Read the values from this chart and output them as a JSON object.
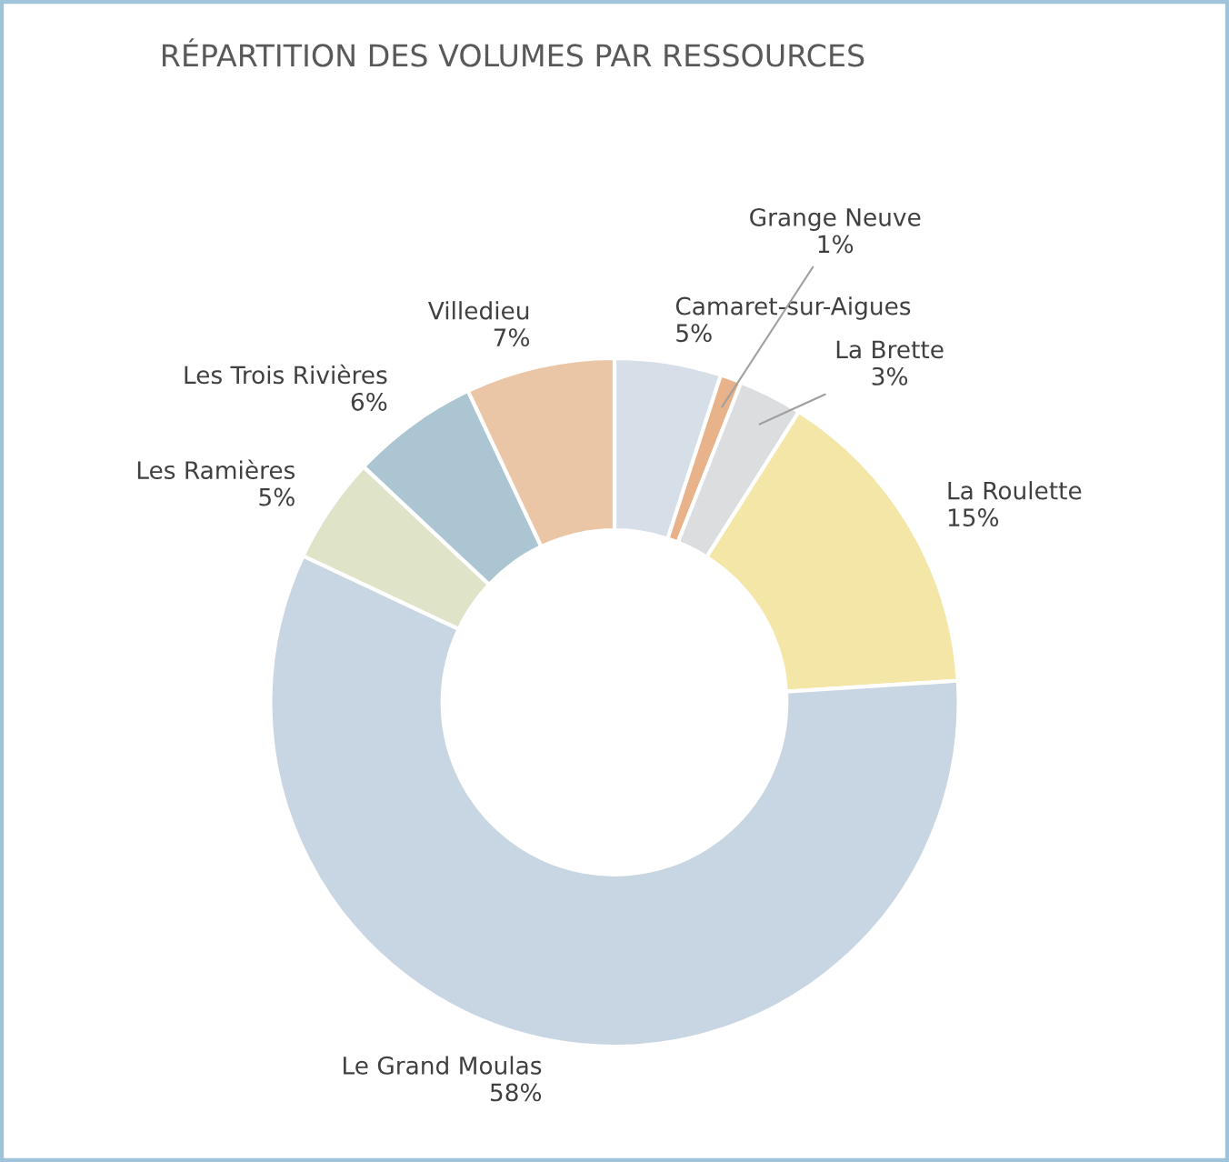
{
  "chart_data": {
    "type": "donut",
    "title": "RÉPARTITION DES VOLUMES PAR RESSOURCES",
    "categories": [
      "Camaret-sur-Aigues",
      "Grange Neuve",
      "La Brette",
      "La Roulette",
      "Le Grand Moulas",
      "Les Ramières",
      "Les Trois Rivières",
      "Villedieu"
    ],
    "values": [
      5,
      1,
      3,
      15,
      58,
      5,
      6,
      7
    ],
    "colors": [
      "#d6dfe8",
      "#e8b28a",
      "#dcdddf",
      "#f3e6a6",
      "#c8d5e2",
      "#dfe4c8",
      "#abc6d2",
      "#eac6a6"
    ],
    "value_labels": [
      "5%",
      "1%",
      "3%",
      "15%",
      "58%",
      "5%",
      "6%",
      "7%"
    ],
    "legend": false
  }
}
